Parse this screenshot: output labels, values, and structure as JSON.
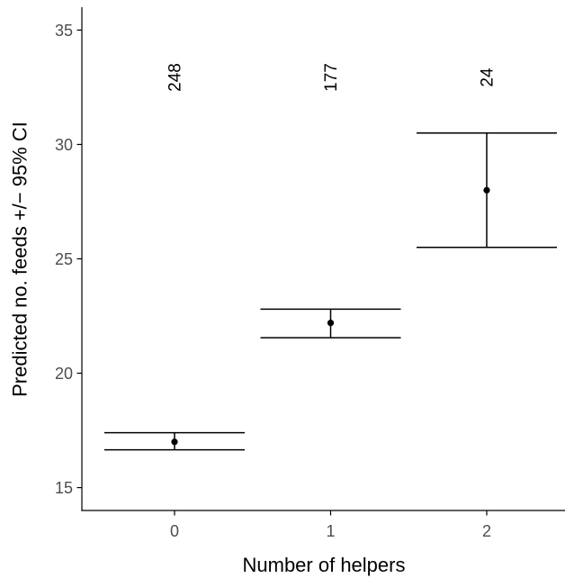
{
  "chart_data": {
    "type": "scatter",
    "categories": [
      "0",
      "1",
      "2"
    ],
    "values": [
      17.0,
      22.2,
      28.0
    ],
    "ci_lower": [
      16.65,
      21.55,
      25.5
    ],
    "ci_upper": [
      17.4,
      22.8,
      30.5
    ],
    "annotations": [
      "248",
      "177",
      "24"
    ],
    "xlabel": "Number of helpers",
    "ylabel": "Predicted no. feeds +/− 95% CI",
    "yticks": [
      15,
      20,
      25,
      30,
      35
    ],
    "ylim": [
      14,
      36
    ],
    "grid": false,
    "show_legend": false,
    "colors": {
      "marks": "#000000",
      "axis_text": "#4d4d4d",
      "axis_title": "#000000"
    }
  }
}
